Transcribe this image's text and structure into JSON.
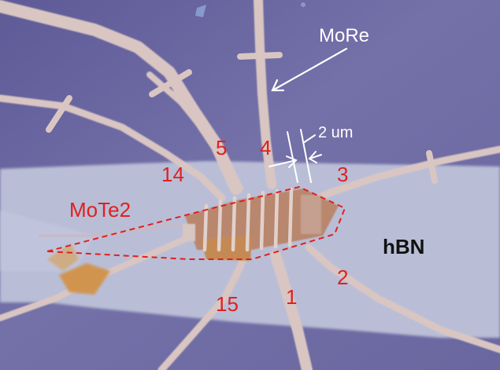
{
  "image": {
    "kind": "optical-micrograph",
    "colors": {
      "substrate": "#6f6ba3",
      "hbn_flake": "#b9bed6",
      "electrode": "#d9c6c3",
      "mote2_flake": "#c98a5a",
      "annotation_red": "#e0201f",
      "annotation_white": "#ffffff"
    }
  },
  "labels": {
    "more": "MoRe",
    "scale_bar": "2 um",
    "mote2": "MoTe2",
    "hbn": "hBN",
    "contacts": {
      "c1": "1",
      "c2": "2",
      "c3": "3",
      "c4": "4",
      "c5": "5",
      "c14": "14",
      "c15": "15"
    }
  }
}
